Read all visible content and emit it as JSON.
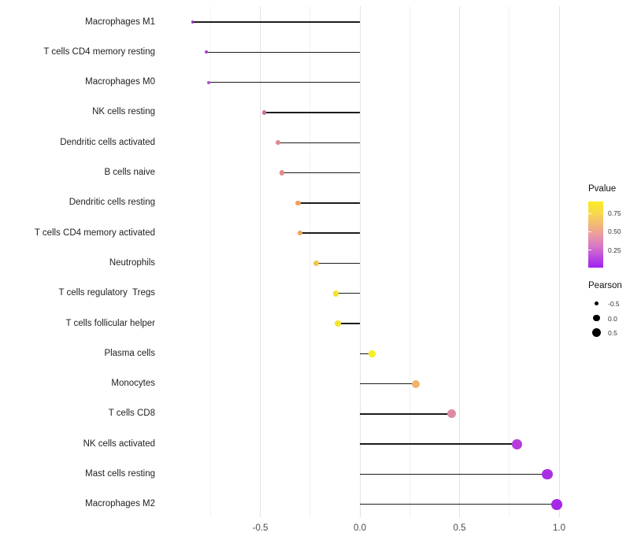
{
  "chart_data": {
    "type": "scatter",
    "variant": "lollipop",
    "orientation": "horizontal",
    "title": "",
    "xlabel": "",
    "ylabel": "",
    "grid": "vertical-only",
    "x_axis": {
      "range": [
        -1.0,
        1.25
      ],
      "ticks": [
        {
          "value": -0.5,
          "label": "-0.5"
        },
        {
          "value": 0.0,
          "label": "0.0"
        },
        {
          "value": 0.5,
          "label": "0.5"
        },
        {
          "value": 1.0,
          "label": "1.0"
        }
      ],
      "minor_ticks": [
        -0.75,
        -0.25,
        0.25,
        0.75
      ]
    },
    "points": [
      {
        "label": "Macrophages M1",
        "pearson": -0.84,
        "color": "#9c35d2"
      },
      {
        "label": "T cells CD4 memory resting",
        "pearson": -0.77,
        "color": "#a43ad0"
      },
      {
        "label": "Macrophages M0",
        "pearson": -0.76,
        "color": "#b14aca"
      },
      {
        "label": "NK cells resting",
        "pearson": -0.48,
        "color": "#cf6d9e"
      },
      {
        "label": "Dendritic cells activated",
        "pearson": -0.41,
        "color": "#e2868e"
      },
      {
        "label": "B cells naive",
        "pearson": -0.39,
        "color": "#e38b85"
      },
      {
        "label": "Dendritic cells resting",
        "pearson": -0.31,
        "color": "#eca263"
      },
      {
        "label": "T cells CD4 memory activated",
        "pearson": -0.3,
        "color": "#eca45f"
      },
      {
        "label": "Neutrophils",
        "pearson": -0.22,
        "color": "#f0c453"
      },
      {
        "label": "T cells regulatory  Tregs",
        "pearson": -0.12,
        "color": "#f4e231"
      },
      {
        "label": "T cells follicular helper",
        "pearson": -0.11,
        "color": "#f4e42e"
      },
      {
        "label": "Plasma cells",
        "pearson": 0.06,
        "color": "#f6ee1f"
      },
      {
        "label": "Monocytes",
        "pearson": 0.28,
        "color": "#eeb46d"
      },
      {
        "label": "T cells CD8",
        "pearson": 0.46,
        "color": "#dc8ba3"
      },
      {
        "label": "NK cells activated",
        "pearson": 0.79,
        "color": "#b83cdc"
      },
      {
        "label": "Mast cells resting",
        "pearson": 0.94,
        "color": "#ab2fe3"
      },
      {
        "label": "Macrophages M2",
        "pearson": 0.99,
        "color": "#a527e8"
      }
    ],
    "legend": {
      "position": "right",
      "pvalue": {
        "title": "Pvalue",
        "gradient_stops": [
          "#fbec22 0%",
          "#f8d850 18%",
          "#f2b37e 38%",
          "#e898a5 52%",
          "#d877c5 68%",
          "#c050dd 82%",
          "#a021f0 100%"
        ],
        "ticks": [
          {
            "label": "0.75",
            "percent": 17.5
          },
          {
            "label": "0.50",
            "percent": 45
          },
          {
            "label": "0.25",
            "percent": 73
          }
        ]
      },
      "pearson": {
        "title": "Pearson",
        "dot_color": "#000000",
        "items": [
          {
            "label": "-0.5",
            "value": -0.5
          },
          {
            "label": "0.0",
            "value": 0.0
          },
          {
            "label": "0.5",
            "value": 0.5
          }
        ]
      }
    }
  }
}
